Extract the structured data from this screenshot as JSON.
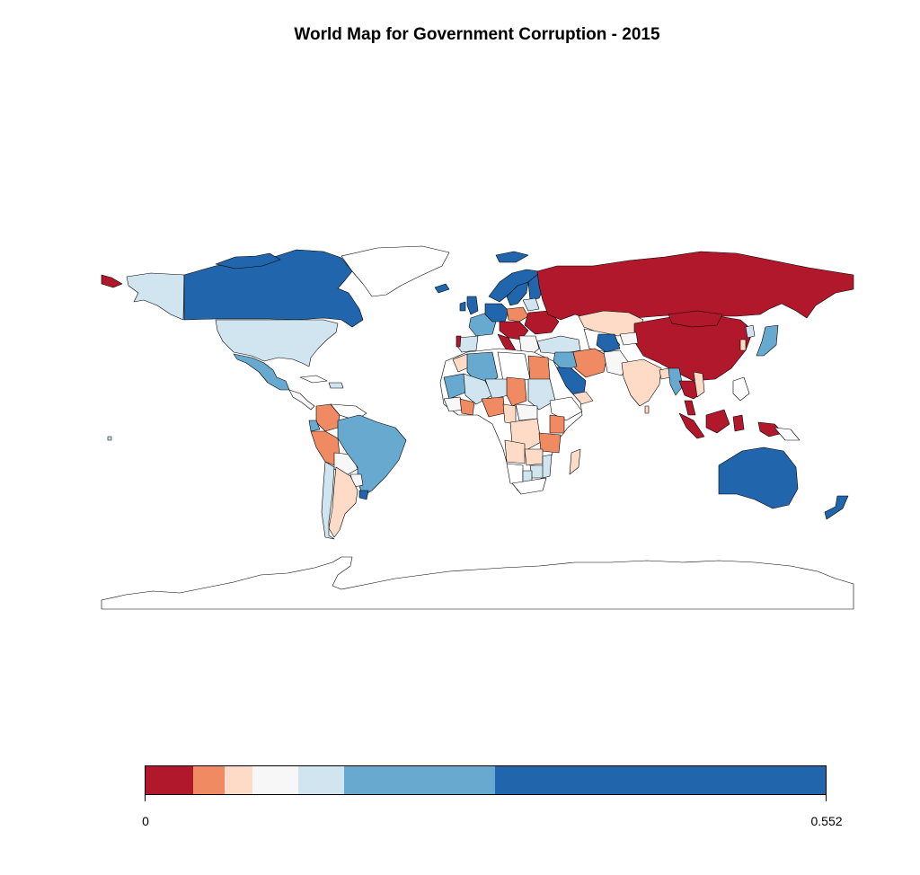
{
  "title": "World Map for Government Corruption - 2015",
  "palette": {
    "c1": "#b2182b",
    "c2": "#ef8a62",
    "c3": "#fddbc7",
    "c4": "#f7f7f7",
    "c5": "#d1e5f0",
    "c6": "#67a9cf",
    "c7": "#2166ac",
    "nodata": "#ffffff"
  },
  "legend": {
    "min_label": "0",
    "max_label": "0.552",
    "bins": [
      {
        "color": "#b2182b",
        "from": 0.0,
        "to": 0.038
      },
      {
        "color": "#ef8a62",
        "from": 0.038,
        "to": 0.064
      },
      {
        "color": "#fddbc7",
        "from": 0.064,
        "to": 0.087
      },
      {
        "color": "#f7f7f7",
        "from": 0.087,
        "to": 0.124
      },
      {
        "color": "#d1e5f0",
        "from": 0.124,
        "to": 0.161
      },
      {
        "color": "#67a9cf",
        "from": 0.161,
        "to": 0.283
      },
      {
        "color": "#2166ac",
        "from": 0.283,
        "to": 0.552
      }
    ]
  },
  "chart_data": {
    "type": "choropleth",
    "title": "World Map for Government Corruption - 2015",
    "range": [
      0,
      0.552
    ],
    "scale": "binned",
    "legend_placement": "bottom"
  }
}
